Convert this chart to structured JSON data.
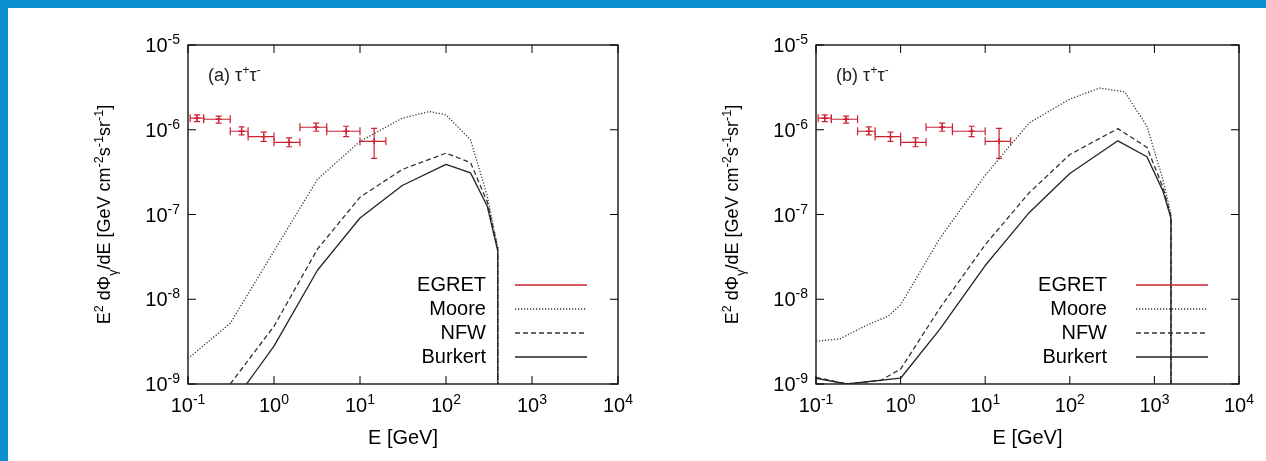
{
  "chart_data": [
    {
      "type": "line",
      "log": "xy",
      "legend": "bottom right",
      "xlabel": "E [GeV]",
      "ylabel": "E$^{2}$ dΦ$_{γ}$/dE [GeV cm$^{-2}$s$^{-1}$sr$^{-1}$]",
      "annotations": [
        "(a)  τ$^{+}$τ$^{-}$"
      ],
      "xlim": [
        0.1,
        10000
      ],
      "ylim": [
        1e-09,
        1e-05
      ],
      "xticks": [
        {
          "value": 0.1,
          "label": "10$^{-1}$"
        },
        {
          "value": 1,
          "label": "10$^{0}$"
        },
        {
          "value": 10,
          "label": "10$^{1}$"
        },
        {
          "value": 100,
          "label": "10$^{2}$"
        },
        {
          "value": 1000,
          "label": "10$^{3}$"
        },
        {
          "value": 10000,
          "label": "10$^{4}$"
        }
      ],
      "yticks": [
        {
          "value": 1e-09,
          "label": "10$^{-9}$"
        },
        {
          "value": 1e-08,
          "label": "10$^{-8}$"
        },
        {
          "value": 1e-07,
          "label": "10$^{-7}$"
        },
        {
          "value": 1e-06,
          "label": "10$^{-6}$"
        },
        {
          "value": 1e-05,
          "label": "10$^{-5}$"
        }
      ],
      "series": [
        {
          "name": "EGRET",
          "type": "scatter",
          "marker": "cross",
          "color": "#cc2233",
          "x": [
            0.127,
            0.227,
            0.42,
            0.76,
            1.5,
            3.1,
            6.9,
            14.6
          ],
          "values": [
            1.37e-06,
            1.33e-06,
            9.6e-07,
            8.3e-07,
            7.1e-07,
            1.07e-06,
            9.6e-07,
            7.3e-07
          ],
          "errors": [
            [
              1.25e-06,
              1.5e-06
            ],
            [
              1.2e-06,
              1.45e-06
            ],
            [
              8.7e-07,
              1.08e-06
            ],
            [
              7.3e-07,
              9.4e-07
            ],
            [
              6.3e-07,
              8e-07
            ],
            [
              9.6e-07,
              1.2e-06
            ],
            [
              8.3e-07,
              1.1e-06
            ],
            [
              4.6e-07,
              1.04e-06
            ]
          ],
          "xerrors": [
            [
              0.106,
              0.152
            ],
            [
              0.152,
              0.31
            ],
            [
              0.31,
              0.5
            ],
            [
              0.5,
              1.0
            ],
            [
              1.0,
              2.0
            ],
            [
              2.0,
              4.1
            ],
            [
              4.1,
              10
            ],
            [
              10,
              20
            ]
          ]
        },
        {
          "name": "Moore",
          "line_style": "dotted",
          "color": "#333333",
          "x": [
            0.1,
            0.31,
            1.0,
            3.2,
            10,
            31,
            64,
            100,
            193,
            302,
            400,
            400
          ],
          "values": [
            2e-09,
            5.2e-09,
            3.7e-08,
            2.6e-07,
            7.3e-07,
            1.37e-06,
            1.64e-06,
            1.5e-06,
            7.6e-07,
            1.65e-07,
            4e-08,
            1e-09
          ]
        },
        {
          "name": "NFW",
          "line_style": "dashed",
          "color": "#333333",
          "x": [
            0.31,
            1.0,
            3.2,
            10,
            31,
            100,
            193,
            302,
            400,
            400
          ],
          "values": [
            1e-09,
            4.8e-09,
            3.9e-08,
            1.6e-07,
            3.4e-07,
            5.3e-07,
            4.1e-07,
            1.4e-07,
            4e-08,
            1e-09
          ]
        },
        {
          "name": "Burkert",
          "line_style": "solid",
          "color": "#222222",
          "x": [
            0.48,
            1.0,
            3.2,
            10,
            31,
            100,
            193,
            302,
            400,
            400
          ],
          "values": [
            1e-09,
            2.8e-09,
            2.2e-08,
            9.1e-08,
            2.2e-07,
            3.9e-07,
            3.1e-07,
            1.25e-07,
            3.7e-08,
            1e-09
          ]
        }
      ]
    },
    {
      "type": "line",
      "log": "xy",
      "legend": "bottom right",
      "xlabel": "E [GeV]",
      "ylabel": "E$^{2}$ dΦ$_{γ}$/dE [GeV cm$^{-2}$s$^{-1}$sr$^{-1}$]",
      "annotations": [
        "(b)  τ$^{+}$τ$^{-}$"
      ],
      "xlim": [
        0.1,
        10000
      ],
      "ylim": [
        1e-09,
        1e-05
      ],
      "xticks": [
        {
          "value": 0.1,
          "label": "10$^{-1}$"
        },
        {
          "value": 1,
          "label": "10$^{0}$"
        },
        {
          "value": 10,
          "label": "10$^{1}$"
        },
        {
          "value": 100,
          "label": "10$^{2}$"
        },
        {
          "value": 1000,
          "label": "10$^{3}$"
        },
        {
          "value": 10000,
          "label": "10$^{4}$"
        }
      ],
      "yticks": [
        {
          "value": 1e-09,
          "label": "10$^{-9}$"
        },
        {
          "value": 1e-08,
          "label": "10$^{-8}$"
        },
        {
          "value": 1e-07,
          "label": "10$^{-7}$"
        },
        {
          "value": 1e-06,
          "label": "10$^{-6}$"
        },
        {
          "value": 1e-05,
          "label": "10$^{-5}$"
        }
      ],
      "series": [
        {
          "name": "EGRET",
          "type": "scatter",
          "marker": "cross",
          "color": "#cc2233",
          "x": [
            0.127,
            0.227,
            0.42,
            0.76,
            1.5,
            3.1,
            6.9,
            14.6
          ],
          "values": [
            1.37e-06,
            1.33e-06,
            9.6e-07,
            8.3e-07,
            7.1e-07,
            1.07e-06,
            9.6e-07,
            7.3e-07
          ],
          "errors": [
            [
              1.25e-06,
              1.5e-06
            ],
            [
              1.2e-06,
              1.45e-06
            ],
            [
              8.7e-07,
              1.08e-06
            ],
            [
              7.3e-07,
              9.4e-07
            ],
            [
              6.3e-07,
              8e-07
            ],
            [
              9.6e-07,
              1.2e-06
            ],
            [
              8.3e-07,
              1.1e-06
            ],
            [
              4.6e-07,
              1.04e-06
            ]
          ],
          "xerrors": [
            [
              0.106,
              0.152
            ],
            [
              0.152,
              0.31
            ],
            [
              0.31,
              0.5
            ],
            [
              0.5,
              1.0
            ],
            [
              1.0,
              2.0
            ],
            [
              2.0,
              4.1
            ],
            [
              4.1,
              10
            ],
            [
              10,
              20
            ]
          ]
        },
        {
          "name": "Moore",
          "line_style": "dotted",
          "color": "#333333",
          "x": [
            0.1,
            0.19,
            0.39,
            0.71,
            1,
            2.9,
            10,
            33,
            100,
            224,
            446,
            816,
            1260,
            1570,
            1570
          ],
          "values": [
            3.2e-09,
            3.4e-09,
            4.9e-09,
            6.3e-09,
            8.6e-09,
            5.2e-08,
            2.9e-07,
            1.2e-06,
            2.3e-06,
            3.1e-06,
            2.8e-06,
            1.1e-06,
            2.6e-07,
            1e-07,
            1e-09
          ]
        },
        {
          "name": "NFW",
          "line_style": "dashed",
          "color": "#333333",
          "x": [
            0.1,
            0.23,
            0.58,
            1,
            2.9,
            10,
            33,
            100,
            370,
            816,
            1260,
            1570,
            1570
          ],
          "values": [
            1.2e-09,
            1e-09,
            1.1e-09,
            1.5e-09,
            7.8e-09,
            4.4e-08,
            1.8e-07,
            5.1e-07,
            1.03e-06,
            6.2e-07,
            2.1e-07,
            9.5e-08,
            1e-09
          ]
        },
        {
          "name": "Burkert",
          "line_style": "solid",
          "color": "#222222",
          "x": [
            0.1,
            0.23,
            1,
            2.9,
            10,
            33,
            100,
            370,
            816,
            1260,
            1570,
            1570
          ],
          "values": [
            1.17e-09,
            1e-09,
            1.17e-09,
            4.4e-09,
            2.5e-08,
            1.05e-07,
            3.05e-07,
            7.4e-07,
            4.8e-07,
            1.9e-07,
            9e-08,
            1e-09
          ]
        }
      ]
    }
  ]
}
